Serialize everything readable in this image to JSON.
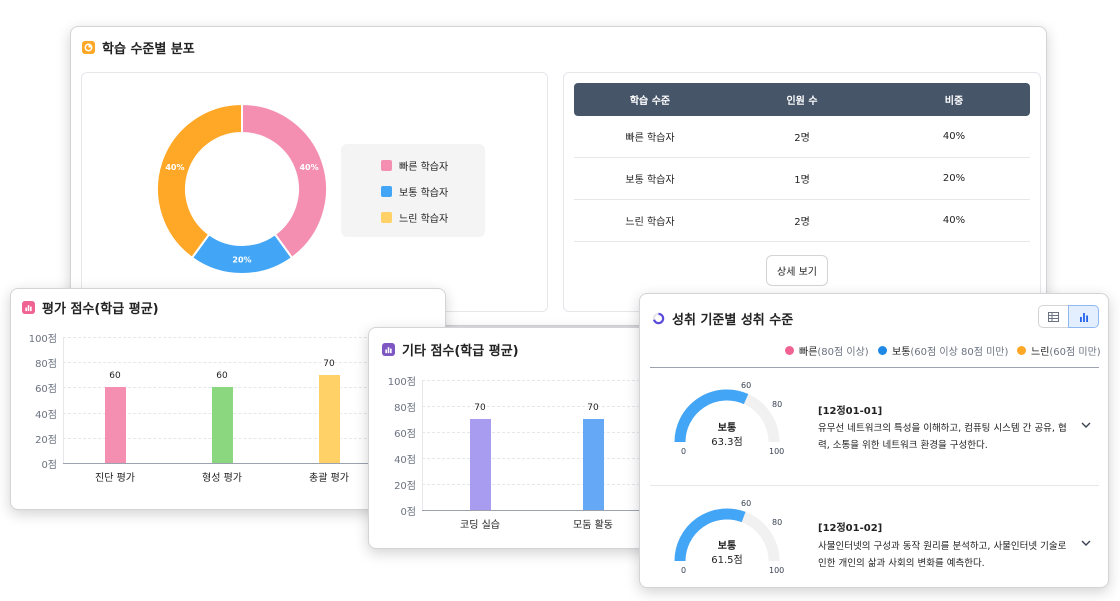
{
  "colors": {
    "fast": "#f48fb1",
    "normal": "#42a5f5",
    "slow": "#ffd166",
    "diag": "#f48fb1",
    "form": "#8bd77f",
    "summ": "#ffd166",
    "coding": "#a89cf0",
    "group": "#64a8f6",
    "donut_slow": "#ffa726",
    "header": "#475569"
  },
  "distribution": {
    "title": "학습 수준별 분포",
    "title_icon": "pie-chart-icon",
    "legend": [
      "빠른 학습자",
      "보통 학습자",
      "느린 학습자"
    ],
    "table": {
      "headers": [
        "학습 수준",
        "인원 수",
        "비중"
      ],
      "rows": [
        [
          "빠른 학습자",
          "2명",
          "40%"
        ],
        [
          "보통 학습자",
          "1명",
          "20%"
        ],
        [
          "느린 학습자",
          "2명",
          "40%"
        ]
      ]
    },
    "detail_button": "상세 보기"
  },
  "eval_scores": {
    "title": "평가 점수(학급 평균)",
    "title_icon": "bar-chart-icon",
    "y_ticks": [
      "100점",
      "80점",
      "60점",
      "40점",
      "20점",
      "0점"
    ]
  },
  "other_scores": {
    "title": "기타 점수(학급 평균)",
    "title_icon": "bar-chart-icon",
    "y_ticks": [
      "100점",
      "80점",
      "60점",
      "40점",
      "20점",
      "0점"
    ]
  },
  "achievement": {
    "title": "성취 기준별 성취 수준",
    "title_icon": "progress-ring-icon",
    "view_toggle": [
      "table-view-icon",
      "chart-view-icon"
    ],
    "legend": [
      {
        "label": "빠른",
        "detail": "(80점 이상)"
      },
      {
        "label": "보통",
        "detail": "(60점 이상 80점 미만)"
      },
      {
        "label": "느린",
        "detail": "(60점 미만)"
      }
    ],
    "gauge_ticks": [
      "0",
      "60",
      "80",
      "100"
    ],
    "items": [
      {
        "code": "[12정01-01]",
        "level": "보통",
        "score_text": "63.3점",
        "score": 63.3,
        "desc": "유무선 네트워크의 특성을 이해하고, 컴퓨팅 시스템 간 공유, 협력, 소통을 위한 네트워크 환경을 구성한다."
      },
      {
        "code": "[12정01-02]",
        "level": "보통",
        "score_text": "61.5점",
        "score": 61.5,
        "desc": "사물인터넷의 구성과 동작 원리를 분석하고, 사물인터넷 기술로 인한 개인의 삶과 사회의 변화를 예측한다."
      }
    ]
  },
  "chart_data": [
    {
      "type": "pie",
      "categories": [
        "빠른 학습자",
        "보통 학습자",
        "느린 학습자"
      ],
      "values": [
        40,
        20,
        40
      ],
      "labels": [
        "40%",
        "20%",
        "40%"
      ]
    },
    {
      "type": "bar",
      "title": "평가 점수(학급 평균)",
      "categories": [
        "진단 평가",
        "형성 평가",
        "총괄 평가"
      ],
      "values": [
        60,
        60,
        70
      ],
      "ylim": [
        0,
        100
      ]
    },
    {
      "type": "bar",
      "title": "기타 점수(학급 평균)",
      "categories": [
        "코딩 실습",
        "모둠 활동"
      ],
      "values": [
        70,
        70
      ],
      "ylim": [
        0,
        100
      ]
    }
  ]
}
